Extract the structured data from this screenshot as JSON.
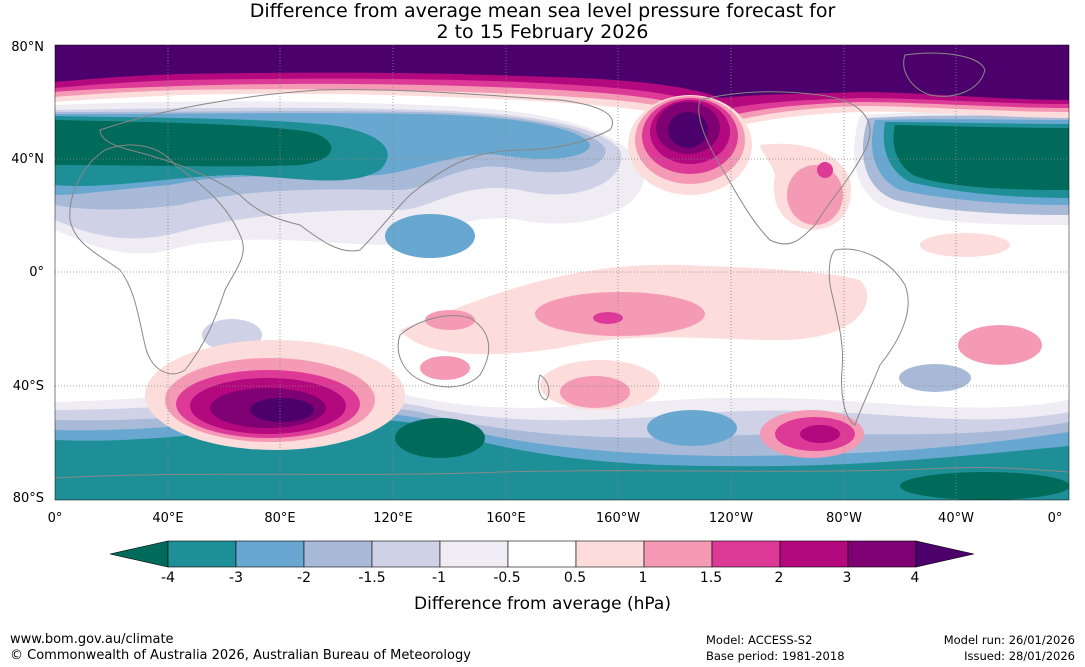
{
  "title": {
    "line1": "Difference from average mean sea level pressure forecast for",
    "line2": "2 to 15 February 2026"
  },
  "axes": {
    "y_labels": [
      "80°N",
      "40°N",
      "0°",
      "40°S",
      "80°S"
    ],
    "x_labels": [
      "0°",
      "40°E",
      "80°E",
      "120°E",
      "160°E",
      "160°W",
      "120°W",
      "80°W",
      "40°W",
      "0°"
    ]
  },
  "colorbar": {
    "labels": [
      "-4",
      "-3",
      "-2",
      "-1.5",
      "-1",
      "-0.5",
      "0.5",
      "1",
      "1.5",
      "2",
      "3",
      "4"
    ],
    "colors": [
      "#006b5a",
      "#1e8f96",
      "#68a8d0",
      "#a8bad8",
      "#cfd2e6",
      "#efecf4",
      "#ffffff",
      "#fddcdc",
      "#f59ab5",
      "#dd3a98",
      "#b3087e",
      "#7f0072",
      "#4c006b"
    ],
    "title": "Difference from average (hPa)"
  },
  "chart_data": {
    "type": "heatmap",
    "title": "Difference from average mean sea level pressure forecast for 2 to 15 February 2026",
    "variable": "Mean sea level pressure anomaly",
    "units": "hPa",
    "lon_range": [
      0,
      360
    ],
    "lat_range": [
      -80,
      80
    ],
    "levels": [
      -4,
      -3,
      -2,
      -1.5,
      -1,
      -0.5,
      0.5,
      1,
      1.5,
      2,
      3,
      4
    ],
    "features": [
      {
        "name": "Arctic positive anomaly",
        "lon": [
          0,
          360
        ],
        "lat": [
          65,
          80
        ],
        "value": "> 4"
      },
      {
        "name": "North Pacific positive anomaly",
        "lon": 222,
        "lat": 50,
        "value": "> 4"
      },
      {
        "name": "South Indian Ocean positive anomaly",
        "lon": 85,
        "lat": -48,
        "value": "> 4"
      },
      {
        "name": "South Pacific positive anomaly",
        "lon": 275,
        "lat": -57,
        "value": "3 to 4"
      },
      {
        "name": "Eurasian negative band",
        "lon": [
          0,
          120
        ],
        "lat": [
          45,
          55
        ],
        "value": "< -4"
      },
      {
        "name": "North Atlantic negative anomaly",
        "lon": [
          310,
          360
        ],
        "lat": [
          40,
          55
        ],
        "value": "< -4"
      },
      {
        "name": "Southern Ocean negative band",
        "lon": [
          0,
          360
        ],
        "lat": [
          -80,
          -60
        ],
        "value": "-3 to -4"
      },
      {
        "name": "South of Australia negative anomaly",
        "lon": 135,
        "lat": -60,
        "value": "< -4"
      },
      {
        "name": "Tropical South Pacific positive",
        "lon": 198,
        "lat": -17,
        "value": "1.5 to 2"
      }
    ]
  },
  "footer": {
    "url": "www.bom.gov.au/climate",
    "copyright": "© Commonwealth of Australia 2026, Australian Bureau of Meteorology",
    "model": "Model: ACCESS-S2",
    "base_period": "Base period: 1981-2018",
    "model_run": "Model run: 26/01/2026",
    "issued": "Issued: 28/01/2026"
  }
}
